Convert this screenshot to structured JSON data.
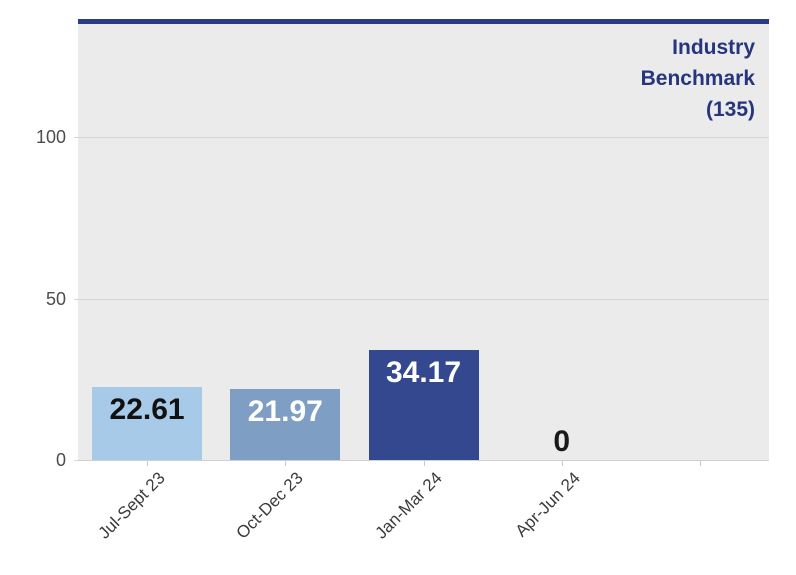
{
  "chart_data": {
    "type": "bar",
    "title": "",
    "categories": [
      "Jul-Sept 23",
      "Oct-Dec 23",
      "Jan-Mar 24",
      "Apr-Jun 24"
    ],
    "values": [
      22.61,
      21.97,
      34.17,
      0
    ],
    "data_labels": [
      "22.61",
      "21.97",
      "34.17",
      "0"
    ],
    "bar_colors": [
      "#a7cae9",
      "#7f9ec3",
      "#33488f",
      "#33488f"
    ],
    "data_label_colors": [
      "#111111",
      "#ffffff",
      "#ffffff",
      "#1a1a1a"
    ],
    "y_ticks": [
      0,
      50,
      100
    ],
    "y_tick_labels": [
      "0",
      "50",
      "100"
    ],
    "ylim": [
      0,
      135
    ],
    "category_slots": 5,
    "grid": "horizontal",
    "legend_position": "none",
    "xlabel": "",
    "ylabel": "",
    "benchmark": {
      "value": 135,
      "label_lines": [
        "Industry",
        "Benchmark",
        "(135)"
      ]
    },
    "colors": {
      "plot_bg": "#ebebeb",
      "grid": "#d6d6d6",
      "baseline": "#cfcfcf",
      "tick": "#c9c9c9",
      "benchmark_line": "#2b3c85",
      "benchmark_text": "#26357d",
      "y_label_text": "#4d4d4d",
      "x_label_text": "#3b3b3b"
    }
  }
}
